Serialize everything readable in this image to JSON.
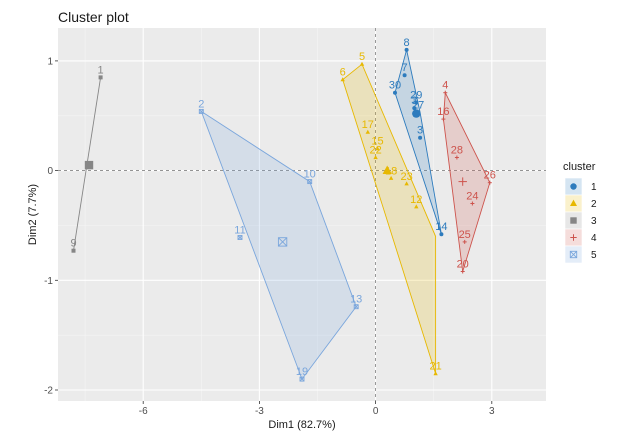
{
  "chart_data": {
    "type": "scatter",
    "title": "Cluster plot",
    "xlabel": "Dim1 (82.7%)",
    "ylabel": "Dim2 (7.7%)",
    "xlim": [
      -8.2,
      4.4
    ],
    "ylim": [
      -2.1,
      1.3
    ],
    "xticks": [
      -6,
      -3,
      0,
      3
    ],
    "yticks": [
      -2,
      -1,
      0,
      1
    ],
    "xtick_labels": [
      "-6",
      "-3",
      "0",
      "3"
    ],
    "ytick_labels": [
      "-2",
      "-1",
      "0",
      "1"
    ],
    "grid": true,
    "legend": {
      "title": "cluster",
      "placement": "right",
      "entries": [
        "1",
        "2",
        "3",
        "4",
        "5"
      ]
    },
    "series": [
      {
        "name": "1",
        "color": "#2d7bbd",
        "marker": "circle",
        "centroid": [
          1.05,
          0.52
        ],
        "points": [
          {
            "label": "8",
            "x": 0.8,
            "y": 1.1
          },
          {
            "label": "7",
            "x": 0.75,
            "y": 0.87
          },
          {
            "label": "30",
            "x": 0.5,
            "y": 0.71
          },
          {
            "label": "29",
            "x": 1.05,
            "y": 0.62
          },
          {
            "label": "3",
            "x": 1.0,
            "y": 0.57
          },
          {
            "label": "27",
            "x": 1.1,
            "y": 0.53
          },
          {
            "label": "3",
            "x": 1.15,
            "y": 0.3
          },
          {
            "label": "14",
            "x": 1.7,
            "y": -0.58
          }
        ],
        "hull": [
          [
            0.8,
            1.1
          ],
          [
            0.5,
            0.71
          ],
          [
            1.7,
            -0.58
          ],
          [
            1.15,
            0.53
          ]
        ]
      },
      {
        "name": "2",
        "color": "#e7b800",
        "marker": "triangle",
        "centroid": [
          0.3,
          0.0
        ],
        "points": [
          {
            "label": "5",
            "x": -0.35,
            "y": 0.97
          },
          {
            "label": "6",
            "x": -0.85,
            "y": 0.83
          },
          {
            "label": "17",
            "x": -0.2,
            "y": 0.35
          },
          {
            "label": "15",
            "x": 0.05,
            "y": 0.2
          },
          {
            "label": "22",
            "x": 0.0,
            "y": 0.12
          },
          {
            "label": "18",
            "x": 0.4,
            "y": -0.07
          },
          {
            "label": "23",
            "x": 0.8,
            "y": -0.12
          },
          {
            "label": "12",
            "x": 1.05,
            "y": -0.33
          },
          {
            "label": "21",
            "x": 1.55,
            "y": -1.85
          }
        ],
        "hull": [
          [
            -0.35,
            0.97
          ],
          [
            -0.85,
            0.83
          ],
          [
            1.55,
            -1.85
          ],
          [
            1.55,
            -0.6
          ]
        ]
      },
      {
        "name": "3",
        "color": "#868686",
        "marker": "square",
        "centroid": [
          -7.4,
          0.05
        ],
        "points": [
          {
            "label": "1",
            "x": -7.1,
            "y": 0.85
          },
          {
            "label": "9",
            "x": -7.8,
            "y": -0.73
          }
        ],
        "hull": [
          [
            -7.1,
            0.85
          ],
          [
            -7.8,
            -0.73
          ]
        ]
      },
      {
        "name": "4",
        "color": "#cd534c",
        "marker": "cross",
        "centroid": [
          2.25,
          -0.1
        ],
        "points": [
          {
            "label": "4",
            "x": 1.8,
            "y": 0.71
          },
          {
            "label": "16",
            "x": 1.75,
            "y": 0.47
          },
          {
            "label": "28",
            "x": 2.1,
            "y": 0.12
          },
          {
            "label": "26",
            "x": 2.95,
            "y": -0.11
          },
          {
            "label": "24",
            "x": 2.5,
            "y": -0.3
          },
          {
            "label": "25",
            "x": 2.3,
            "y": -0.65
          },
          {
            "label": "20",
            "x": 2.25,
            "y": -0.92
          }
        ],
        "hull": [
          [
            1.8,
            0.71
          ],
          [
            2.95,
            -0.11
          ],
          [
            2.25,
            -0.92
          ],
          [
            1.75,
            0.47
          ]
        ]
      },
      {
        "name": "5",
        "color": "#7aa6dc",
        "marker": "square-x",
        "centroid": [
          -2.4,
          -0.65
        ],
        "points": [
          {
            "label": "2",
            "x": -4.5,
            "y": 0.54
          },
          {
            "label": "10",
            "x": -1.7,
            "y": -0.1
          },
          {
            "label": "11",
            "x": -3.5,
            "y": -0.61
          },
          {
            "label": "13",
            "x": -0.5,
            "y": -1.24
          },
          {
            "label": "19",
            "x": -1.9,
            "y": -1.9
          }
        ],
        "hull": [
          [
            -4.5,
            0.54
          ],
          [
            -1.7,
            -0.1
          ],
          [
            -0.5,
            -1.24
          ],
          [
            -1.9,
            -1.9
          ]
        ]
      }
    ]
  }
}
